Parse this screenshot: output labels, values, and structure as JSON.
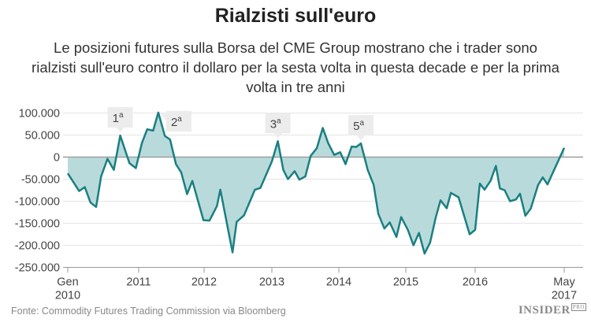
{
  "title": "Rialzisti sull'euro",
  "subtitle": "Le posizioni futures sulla Borsa del CME Group mostrano che i trader sono rialzisti sull'euro contro il dollaro per la sesta volta in questa decade e per la prima volta in tre anni",
  "source": "Fonte: Commodity Futures Trading Commission via Bloomberg",
  "logo": {
    "text": "INSIDER",
    "badge": "PRO"
  },
  "chart_data": {
    "type": "area",
    "title": "Rialzisti sull'euro",
    "xlabel": "",
    "ylabel": "",
    "ylim": [
      -250000,
      100000
    ],
    "xlim": [
      2010.0,
      2017.33
    ],
    "grid": true,
    "line_color": "#1b7f81",
    "fill_color": "#b9dadb",
    "y_ticks": [
      {
        "value": 100000,
        "label": "100.000"
      },
      {
        "value": 50000,
        "label": "50.000"
      },
      {
        "value": 0,
        "label": "0"
      },
      {
        "value": -50000,
        "label": "-50.000"
      },
      {
        "value": -100000,
        "label": "-100.000"
      },
      {
        "value": -150000,
        "label": "-150.000"
      },
      {
        "value": -200000,
        "label": "-200.000"
      },
      {
        "value": -250000,
        "label": "-250.000"
      }
    ],
    "x_ticks": [
      {
        "value": 2010.0,
        "label": "Gen",
        "label2": "2010"
      },
      {
        "value": 2011.0,
        "label": "2011"
      },
      {
        "value": 2012.0,
        "label": "2012"
      },
      {
        "value": 2013.0,
        "label": "2013"
      },
      {
        "value": 2014.0,
        "label": "2014"
      },
      {
        "value": 2015.0,
        "label": "2015"
      },
      {
        "value": 2016.0,
        "label": "2016"
      },
      {
        "value": 2017.33,
        "label": "May",
        "label2": "2017"
      }
    ],
    "x": [
      2010.0,
      2010.16,
      2010.24,
      2010.32,
      2010.4,
      2010.47,
      2010.56,
      2010.65,
      2010.74,
      2010.8,
      2010.87,
      2010.96,
      2011.05,
      2011.13,
      2011.22,
      2011.3,
      2011.4,
      2011.48,
      2011.57,
      2011.65,
      2011.74,
      2011.82,
      2011.99,
      2012.08,
      2012.19,
      2012.24,
      2012.42,
      2012.48,
      2012.59,
      2012.75,
      2012.83,
      2013.0,
      2013.09,
      2013.17,
      2013.24,
      2013.34,
      2013.41,
      2013.5,
      2013.58,
      2013.67,
      2013.76,
      2013.84,
      2013.93,
      2014.02,
      2014.1,
      2014.19,
      2014.26,
      2014.33,
      2014.43,
      2014.52,
      2014.59,
      2014.68,
      2014.76,
      2014.86,
      2014.93,
      2015.03,
      2015.11,
      2015.19,
      2015.27,
      2015.35,
      2015.43,
      2015.5,
      2015.59,
      2015.65,
      2015.76,
      2015.92,
      2016.0,
      2016.07,
      2016.14,
      2016.23,
      2016.31,
      2016.37,
      2016.44,
      2016.52,
      2016.61,
      2016.67,
      2016.75,
      2016.83,
      2016.94,
      2017.01,
      2017.08,
      2017.33
    ],
    "values": [
      -37000,
      -77000,
      -68000,
      -103000,
      -113000,
      -44000,
      -4000,
      -29000,
      49000,
      20000,
      -14000,
      -25000,
      32000,
      63000,
      60000,
      101000,
      48000,
      40000,
      -16000,
      -35000,
      -84000,
      -54000,
      -143000,
      -144000,
      -111000,
      -74000,
      -216000,
      -147000,
      -132000,
      -74000,
      -70000,
      -10000,
      36000,
      -29000,
      -50000,
      -32000,
      -51000,
      -44000,
      3000,
      20000,
      66000,
      32000,
      5000,
      11000,
      -16000,
      24000,
      23000,
      31000,
      -29000,
      -63000,
      -129000,
      -162000,
      -148000,
      -181000,
      -136000,
      -165000,
      -200000,
      -172000,
      -219000,
      -194000,
      -138000,
      -98000,
      -116000,
      -81000,
      -91000,
      -175000,
      -165000,
      -60000,
      -74000,
      -54000,
      -20000,
      -71000,
      -75000,
      -100000,
      -96000,
      -83000,
      -133000,
      -117000,
      -63000,
      -46000,
      -62000,
      21000
    ],
    "annotations": [
      {
        "label": "1",
        "sup": "a",
        "x": 2010.74,
        "value": 49000
      },
      {
        "label": "2",
        "sup": "a",
        "x": 2011.3,
        "value": 101000
      },
      {
        "label": "3",
        "sup": "a",
        "x": 2013.09,
        "value": 36000
      },
      {
        "label": "5",
        "sup": "a",
        "x": 2014.33,
        "value": 31000
      }
    ]
  }
}
